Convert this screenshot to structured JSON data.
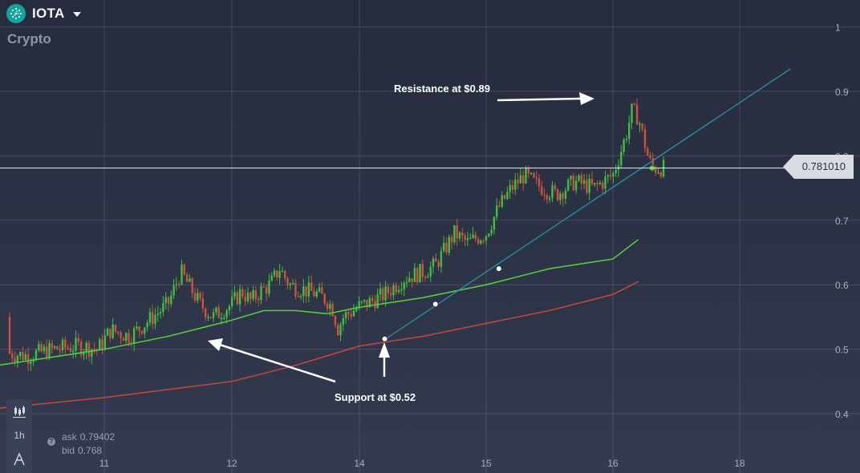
{
  "header": {
    "asset_name": "IOTA",
    "category": "Crypto"
  },
  "price_tag": {
    "value": "0.781010"
  },
  "quote": {
    "ask_label": "ask",
    "ask_value": "0.79402",
    "bid_label": "bid",
    "bid_value": "0.768"
  },
  "toolbar": {
    "timeframe": "1h"
  },
  "annotations": {
    "resistance": "Resistance at $0.89",
    "support": "Support at $0.52"
  },
  "colors": {
    "up": "#3fbf3f",
    "down": "#d0513c",
    "ma_fast": "#56c93d",
    "ma_slow": "#c6483a",
    "trendline": "#2a8fa6"
  },
  "chart_data": {
    "type": "candlestick",
    "x_ticks": [
      "11",
      "12",
      "14",
      "15",
      "16",
      "18"
    ],
    "y_ticks": [
      "0.4",
      "0.5",
      "0.6",
      "0.7",
      "0.8",
      "0.9",
      "1"
    ],
    "ylim": [
      0.375,
      1.02
    ],
    "grid": true,
    "current_price": 0.78101,
    "close_path": [
      [
        10.0,
        0.55
      ],
      [
        10.1,
        0.52
      ],
      [
        10.2,
        0.495
      ],
      [
        10.4,
        0.49
      ],
      [
        10.6,
        0.5
      ],
      [
        10.8,
        0.505
      ],
      [
        10.95,
        0.5
      ],
      [
        11.05,
        0.53
      ],
      [
        11.2,
        0.52
      ],
      [
        11.35,
        0.545
      ],
      [
        11.5,
        0.57
      ],
      [
        11.6,
        0.62
      ],
      [
        11.75,
        0.57
      ],
      [
        11.85,
        0.55
      ],
      [
        12.0,
        0.57
      ],
      [
        12.15,
        0.59
      ],
      [
        12.3,
        0.575
      ],
      [
        12.45,
        0.59
      ],
      [
        12.6,
        0.6
      ],
      [
        12.75,
        0.625
      ],
      [
        12.9,
        0.6
      ],
      [
        13.05,
        0.595
      ],
      [
        13.2,
        0.59
      ],
      [
        13.35,
        0.585
      ],
      [
        13.5,
        0.575
      ],
      [
        13.6,
        0.56
      ],
      [
        13.65,
        0.53
      ],
      [
        13.75,
        0.55
      ],
      [
        13.9,
        0.56
      ],
      [
        14.05,
        0.57
      ],
      [
        14.2,
        0.585
      ],
      [
        14.35,
        0.61
      ],
      [
        14.5,
        0.62
      ],
      [
        14.6,
        0.63
      ],
      [
        14.75,
        0.68
      ],
      [
        14.85,
        0.665
      ],
      [
        15.0,
        0.68
      ],
      [
        15.1,
        0.72
      ],
      [
        15.2,
        0.75
      ],
      [
        15.3,
        0.77
      ],
      [
        15.4,
        0.755
      ],
      [
        15.55,
        0.74
      ],
      [
        15.7,
        0.76
      ],
      [
        15.85,
        0.75
      ],
      [
        16.0,
        0.77
      ],
      [
        16.1,
        0.8
      ],
      [
        16.2,
        0.83
      ],
      [
        16.3,
        0.87
      ],
      [
        16.4,
        0.86
      ],
      [
        16.5,
        0.82
      ],
      [
        16.55,
        0.8
      ],
      [
        16.62,
        0.781
      ]
    ],
    "series": [
      {
        "name": "",
        "type": "moving-average-fast",
        "values": [
          [
            10.0,
            0.47
          ],
          [
            11.0,
            0.5
          ],
          [
            11.5,
            0.52
          ],
          [
            12.0,
            0.545
          ],
          [
            12.5,
            0.56
          ],
          [
            13.0,
            0.56
          ],
          [
            13.5,
            0.555
          ],
          [
            14.0,
            0.565
          ],
          [
            14.5,
            0.58
          ],
          [
            15.0,
            0.6
          ],
          [
            15.5,
            0.625
          ],
          [
            16.0,
            0.64
          ],
          [
            16.4,
            0.67
          ]
        ]
      },
      {
        "name": "",
        "type": "moving-average-slow",
        "values": [
          [
            10.0,
            0.405
          ],
          [
            11.0,
            0.425
          ],
          [
            12.0,
            0.45
          ],
          [
            13.0,
            0.475
          ],
          [
            14.0,
            0.505
          ],
          [
            14.5,
            0.52
          ],
          [
            15.0,
            0.54
          ],
          [
            15.5,
            0.56
          ],
          [
            16.0,
            0.585
          ],
          [
            16.4,
            0.605
          ]
        ]
      },
      {
        "name": "",
        "type": "trendline",
        "values": [
          [
            14.2,
            0.515
          ],
          [
            18.8,
            0.935
          ]
        ]
      }
    ],
    "points": [
      {
        "x": 14.2,
        "y": 0.516,
        "color": "white"
      },
      {
        "x": 14.6,
        "y": 0.57,
        "color": "white"
      },
      {
        "x": 15.1,
        "y": 0.625,
        "color": "white"
      },
      {
        "x": 16.62,
        "y": 0.781,
        "color": "green"
      }
    ]
  }
}
